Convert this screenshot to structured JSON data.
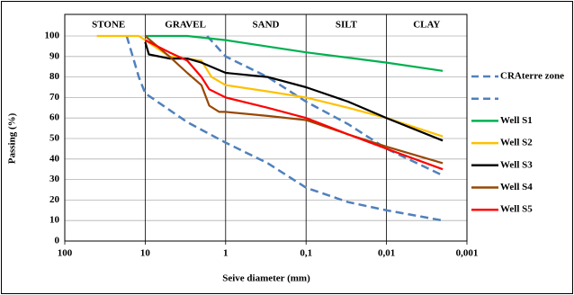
{
  "chart_data": {
    "type": "line",
    "x_label": "Seive diameter  (mm)",
    "y_label": "Passing (%)",
    "zones": [
      "STONE",
      "GRAVEL",
      "SAND",
      "SILT",
      "CLAY"
    ],
    "xlim": [
      100,
      0.001
    ],
    "xscale": "log",
    "xticks": [
      100,
      10,
      1,
      {
        "value": 0.1,
        "label": "0,1"
      },
      {
        "value": 0.01,
        "label": "0,01"
      },
      {
        "value": 0.001,
        "label": "0,001"
      }
    ],
    "ylim": [
      0,
      100
    ],
    "yticks": [
      0,
      10,
      20,
      30,
      40,
      50,
      60,
      70,
      80,
      90,
      100
    ],
    "grid": true,
    "legend": "right",
    "series": [
      {
        "name": "CRAterre zone",
        "color": "#4f81bd",
        "dashed": true,
        "x": [
          1.7,
          1,
          0.3,
          0.1,
          0.03,
          0.01,
          0.002
        ],
        "values": [
          100,
          90,
          80,
          68,
          57,
          45,
          32
        ]
      },
      {
        "name": null,
        "color": "#4f81bd",
        "dashed": true,
        "x": [
          17,
          12,
          10,
          3,
          1,
          0.3,
          0.1,
          0.03,
          0.01,
          0.002
        ],
        "values": [
          100,
          80,
          72,
          58,
          48,
          38,
          26,
          19,
          15,
          10
        ]
      },
      {
        "name": "Well S1",
        "color": "#00b050",
        "x": [
          10,
          3,
          1,
          0.1,
          0.01,
          0.002
        ],
        "values": [
          100,
          100,
          98,
          92,
          87,
          83
        ]
      },
      {
        "name": "Well S2",
        "color": "#ffc000",
        "x": [
          40,
          12,
          10,
          5,
          2,
          1.5,
          1,
          0.3,
          0.1,
          0.03,
          0.01,
          0.002
        ],
        "values": [
          100,
          100,
          98,
          90,
          88,
          80,
          76,
          73,
          70,
          65,
          60,
          51
        ]
      },
      {
        "name": "Well S3",
        "color": "#000000",
        "x": [
          10,
          9,
          5,
          3,
          2,
          1,
          0.3,
          0.1,
          0.03,
          0.01,
          0.002
        ],
        "values": [
          97,
          91,
          89,
          89,
          87,
          82,
          80,
          75,
          68,
          60,
          49
        ]
      },
      {
        "name": "Well S4",
        "color": "#974806",
        "x": [
          10,
          5,
          3,
          2,
          1.6,
          1.2,
          1,
          0.3,
          0.1,
          0.03,
          0.01,
          0.002
        ],
        "values": [
          100,
          90,
          82,
          76,
          66,
          63,
          63,
          61,
          59,
          52,
          46,
          38
        ]
      },
      {
        "name": "Well S5",
        "color": "#ff0000",
        "x": [
          10,
          5,
          3,
          2,
          1.6,
          1,
          0.3,
          0.1,
          0.03,
          0.01,
          0.002
        ],
        "values": [
          98,
          92,
          88,
          80,
          74,
          70,
          65,
          60,
          52,
          45,
          35
        ]
      }
    ]
  }
}
